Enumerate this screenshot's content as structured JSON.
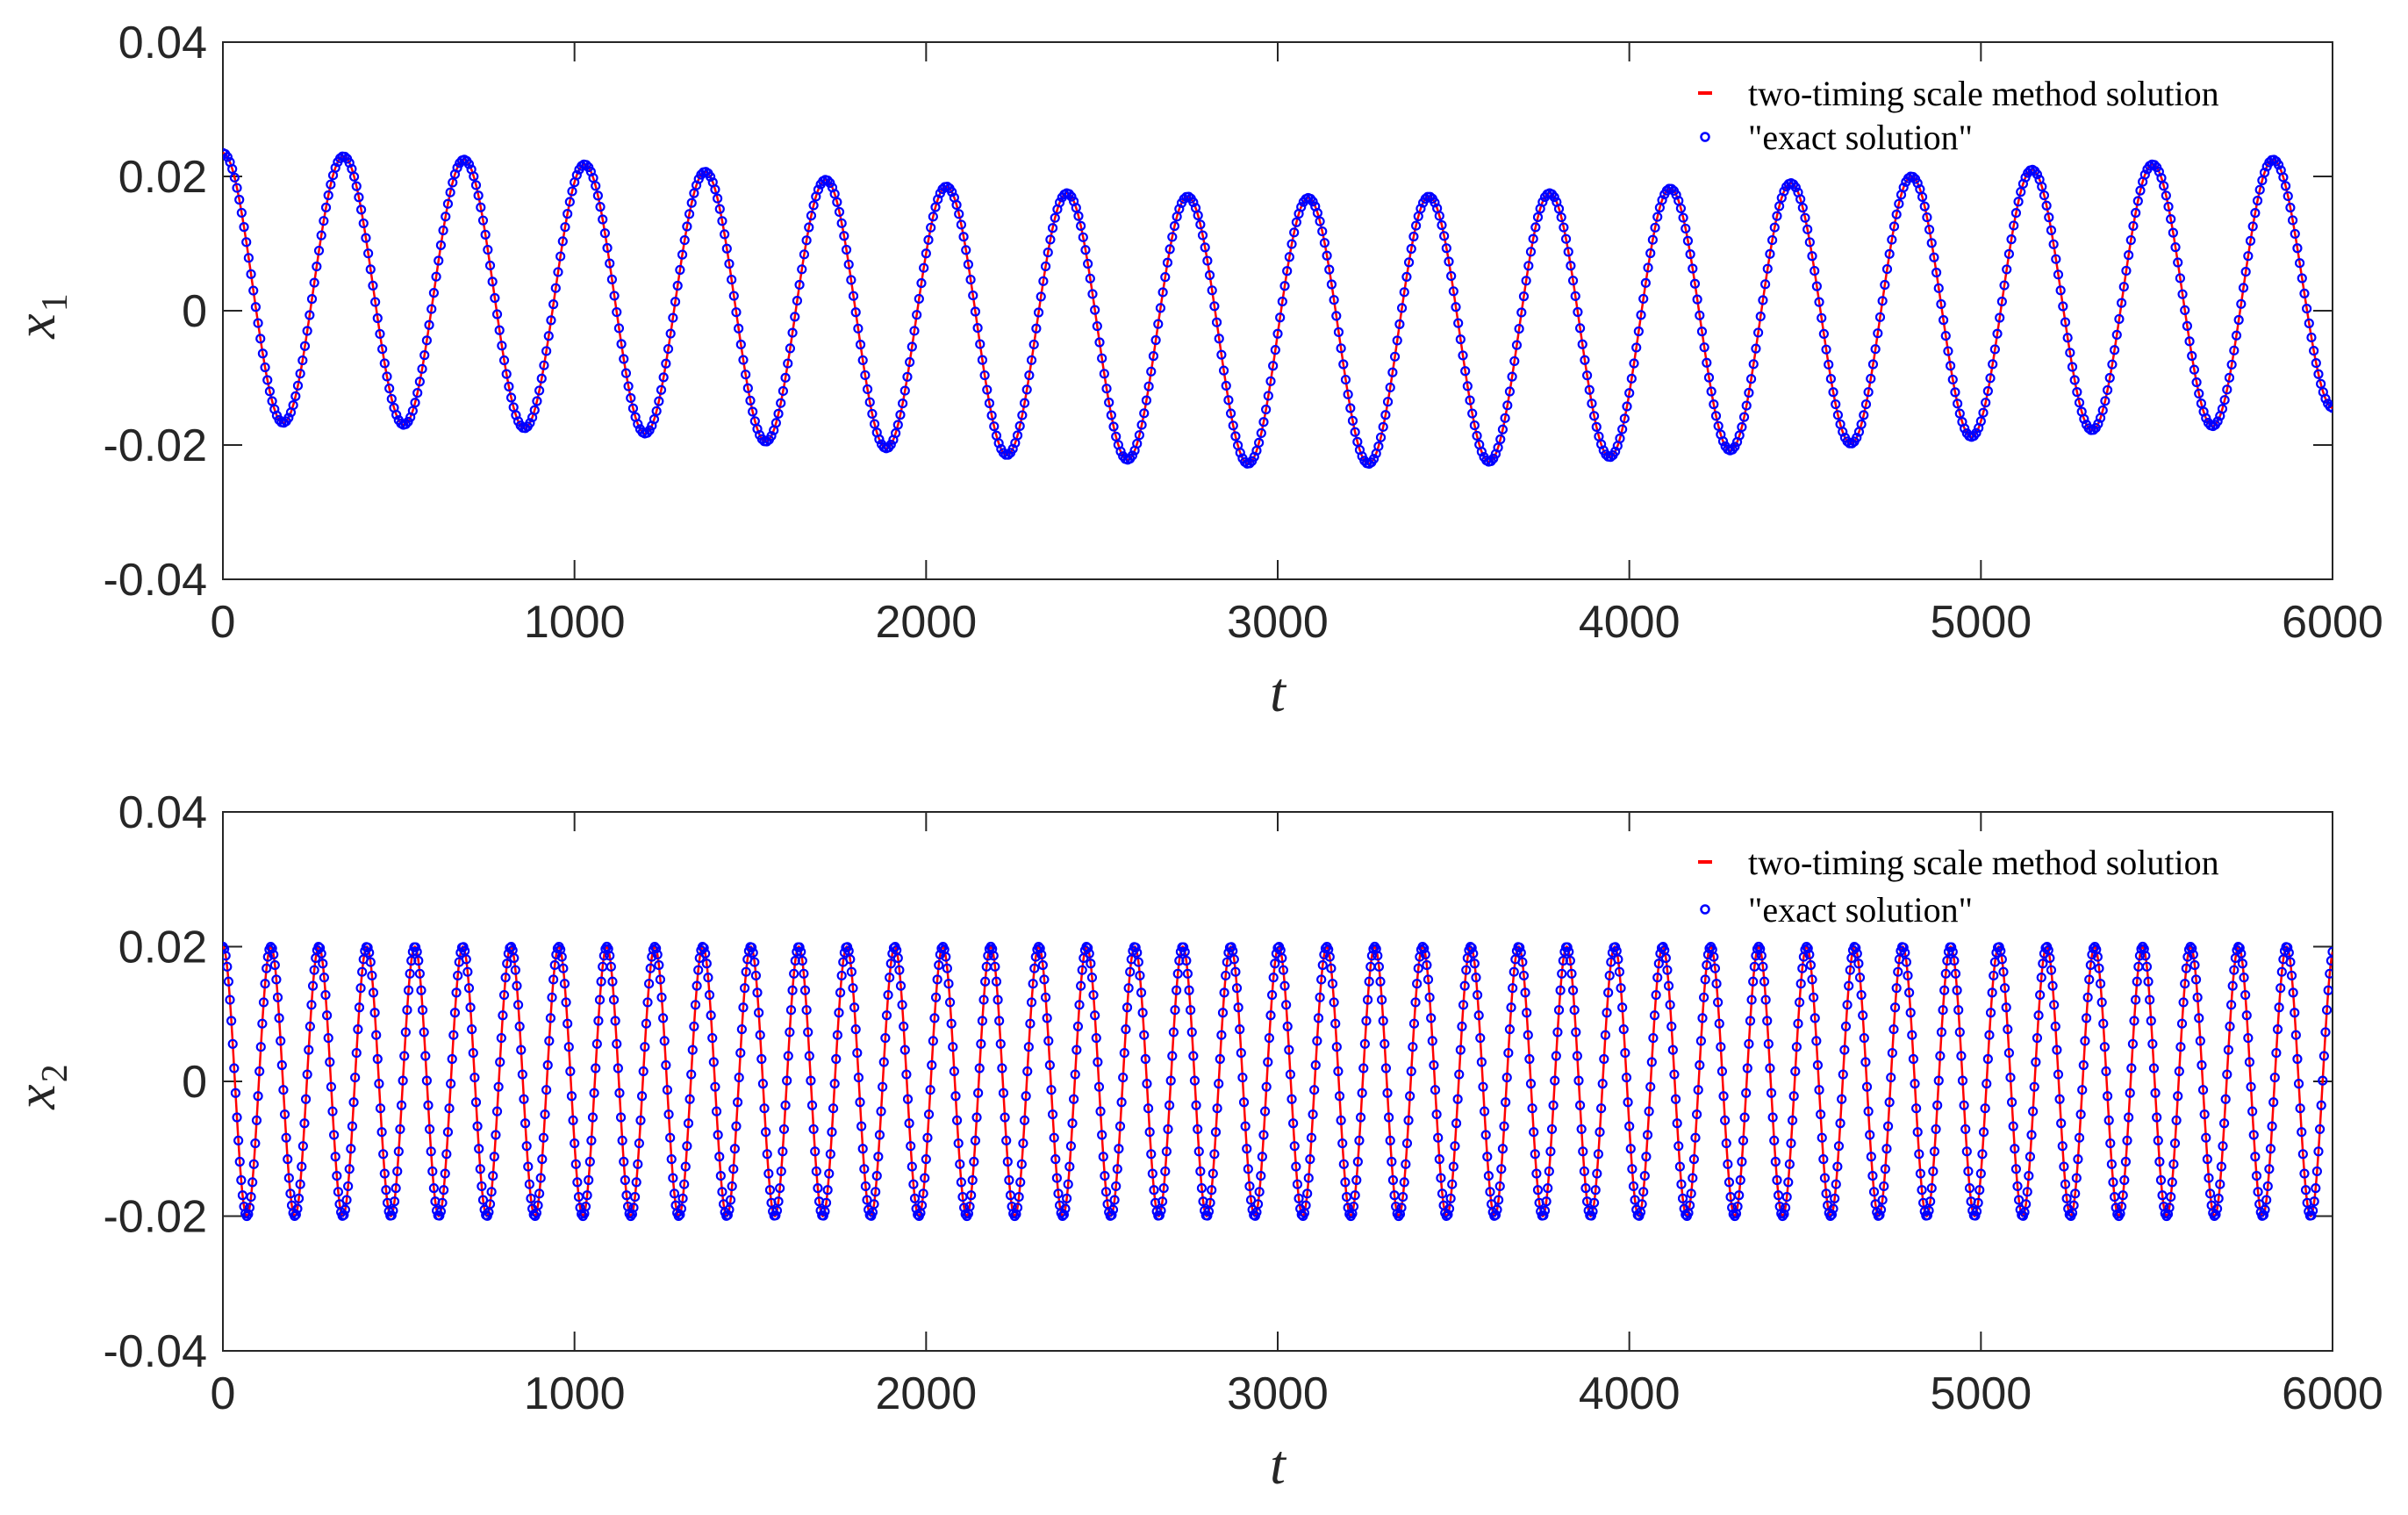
{
  "chart_data": [
    {
      "type": "line",
      "xlabel": "t",
      "ylabel": {
        "base": "x",
        "sub": "1"
      },
      "xlim": [
        0,
        6000
      ],
      "ylim": [
        -0.04,
        0.04
      ],
      "xticks": [
        0,
        1000,
        2000,
        3000,
        4000,
        5000,
        6000
      ],
      "xtick_labels": [
        "0",
        "1000",
        "2000",
        "3000",
        "4000",
        "5000",
        "6000"
      ],
      "yticks": [
        0.04,
        0.02,
        0,
        -0.02,
        -0.04
      ],
      "ytick_labels": [
        "0.04",
        "0.02",
        "0",
        "-0.02",
        "-0.04"
      ],
      "grid": false,
      "legend_position": "top-right",
      "legend": [
        "two-timing scale method solution",
        "\"exact solution\""
      ],
      "series": [
        {
          "name": "two-timing scale method solution",
          "style": "line",
          "color": "#ff0000"
        },
        {
          "name": "\"exact solution\"",
          "style": "open-circle markers",
          "color": "#0000ff"
        }
      ],
      "signal": {
        "period": 343,
        "phase_start": 0,
        "offset": 0.003,
        "amp_start": 0.0205,
        "amp_min": 0.02,
        "amp_max": 0.0205,
        "envelope_period": 6000,
        "x_end": 6000
      },
      "peaks": [
        {
          "t": 0,
          "y": 0.0235
        },
        {
          "t": 343,
          "y": 0.023
        },
        {
          "t": 686,
          "y": 0.0225
        },
        {
          "t": 1029,
          "y": 0.0218
        },
        {
          "t": 1372,
          "y": 0.0207
        },
        {
          "t": 1715,
          "y": 0.0195
        },
        {
          "t": 2058,
          "y": 0.0185
        },
        {
          "t": 2401,
          "y": 0.0175
        },
        {
          "t": 2744,
          "y": 0.017
        },
        {
          "t": 3087,
          "y": 0.0168
        },
        {
          "t": 3430,
          "y": 0.017
        },
        {
          "t": 3773,
          "y": 0.0175
        },
        {
          "t": 4116,
          "y": 0.0182
        },
        {
          "t": 4459,
          "y": 0.019
        },
        {
          "t": 4802,
          "y": 0.02
        },
        {
          "t": 5145,
          "y": 0.021
        },
        {
          "t": 5488,
          "y": 0.0218
        },
        {
          "t": 5831,
          "y": 0.0225
        }
      ],
      "troughs": [
        {
          "t": 172,
          "y": -0.0167
        },
        {
          "t": 515,
          "y": -0.017
        },
        {
          "t": 858,
          "y": -0.0175
        },
        {
          "t": 1201,
          "y": -0.0183
        },
        {
          "t": 1544,
          "y": -0.0195
        },
        {
          "t": 1887,
          "y": -0.0205
        },
        {
          "t": 2230,
          "y": -0.0215
        },
        {
          "t": 2573,
          "y": -0.0222
        },
        {
          "t": 2916,
          "y": -0.0228
        },
        {
          "t": 3259,
          "y": -0.0228
        },
        {
          "t": 3602,
          "y": -0.0225
        },
        {
          "t": 3945,
          "y": -0.0218
        },
        {
          "t": 4288,
          "y": -0.0208
        },
        {
          "t": 4631,
          "y": -0.0198
        },
        {
          "t": 4974,
          "y": -0.0188
        },
        {
          "t": 5317,
          "y": -0.0178
        },
        {
          "t": 5660,
          "y": -0.0172
        },
        {
          "t": 6000,
          "y": -0.0145
        }
      ]
    },
    {
      "type": "line",
      "xlabel": "t",
      "ylabel": {
        "base": "x",
        "sub": "2"
      },
      "xlim": [
        0,
        6000
      ],
      "ylim": [
        -0.04,
        0.04
      ],
      "xticks": [
        0,
        1000,
        2000,
        3000,
        4000,
        5000,
        6000
      ],
      "xtick_labels": [
        "0",
        "1000",
        "2000",
        "3000",
        "4000",
        "5000",
        "6000"
      ],
      "yticks": [
        0.04,
        0.02,
        0,
        -0.02,
        -0.04
      ],
      "ytick_labels": [
        "0.04",
        "0.02",
        "0",
        "-0.02",
        "-0.04"
      ],
      "grid": false,
      "legend_position": "top-right",
      "legend": [
        "two-timing scale method solution",
        "\"exact solution\""
      ],
      "series": [
        {
          "name": "two-timing scale method solution",
          "style": "line",
          "color": "#ff0000"
        },
        {
          "name": "\"exact solution\"",
          "style": "open-circle markers",
          "color": "#0000ff"
        }
      ],
      "signal": {
        "amplitude": 0.02,
        "period": 136.5,
        "offset": 0,
        "phase_start": 0,
        "x_end": 6000,
        "y_at_end": 0.018
      }
    }
  ]
}
